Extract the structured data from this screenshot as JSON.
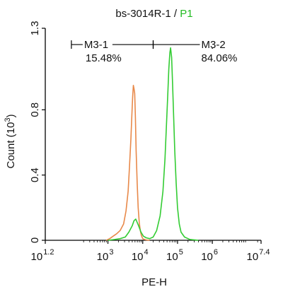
{
  "chart_data": {
    "type": "line",
    "title": {
      "sample": "bs-3014R-1",
      "separator": " / ",
      "gate": "P1"
    },
    "xlabel": "PE-H",
    "ylabel": "Count",
    "ylabel_unit_base": "(10",
    "ylabel_unit_exp": "3",
    "ylabel_unit_close": ")",
    "xscale": "log",
    "xlim": [
      1.2,
      7.4
    ],
    "ylim": [
      0,
      1.3
    ],
    "x_ticks": [
      {
        "base": "10",
        "exp": "1.2",
        "value": 1.2
      },
      {
        "base": "10",
        "exp": "3",
        "value": 3
      },
      {
        "base": "10",
        "exp": "4",
        "value": 4
      },
      {
        "base": "10",
        "exp": "5",
        "value": 5
      },
      {
        "base": "10",
        "exp": "6",
        "value": 6
      },
      {
        "base": "10",
        "exp": "7.4",
        "value": 7.4
      }
    ],
    "y_ticks": [
      {
        "label": "0",
        "value": 0
      },
      {
        "label": "0.4",
        "value": 0.4
      },
      {
        "label": "0.8",
        "value": 0.8
      },
      {
        "label": "1.3",
        "value": 1.3
      }
    ],
    "colors": {
      "title_gate": "#22bb22",
      "control": "#e8894a",
      "sample": "#33cc33",
      "axis": "#000000"
    },
    "series": [
      {
        "color": "#e8894a",
        "x": [
          2.95,
          3.05,
          3.15,
          3.25,
          3.35,
          3.45,
          3.52,
          3.58,
          3.62,
          3.66,
          3.69,
          3.71,
          3.73,
          3.75,
          3.77,
          3.79,
          3.81,
          3.84,
          3.87,
          3.9,
          3.93,
          3.96,
          4.0,
          4.05,
          4.1,
          4.2
        ],
        "y": [
          0,
          0.01,
          0.025,
          0.04,
          0.06,
          0.1,
          0.18,
          0.3,
          0.45,
          0.62,
          0.78,
          0.88,
          0.95,
          0.93,
          0.9,
          0.75,
          0.55,
          0.35,
          0.2,
          0.11,
          0.06,
          0.03,
          0.01,
          0.005,
          0.002,
          0
        ]
      },
      {
        "color": "#33cc33",
        "x": [
          3.0,
          3.2,
          3.35,
          3.5,
          3.6,
          3.7,
          3.75,
          3.8,
          3.88,
          3.95,
          4.02,
          4.1,
          4.2,
          4.3,
          4.4,
          4.5,
          4.58,
          4.64,
          4.68,
          4.72,
          4.75,
          4.78,
          4.8,
          4.83,
          4.86,
          4.89,
          4.92,
          4.96,
          5.0,
          5.05,
          5.1,
          5.2,
          5.35,
          5.6
        ],
        "y": [
          0,
          0.005,
          0.01,
          0.02,
          0.05,
          0.09,
          0.12,
          0.13,
          0.09,
          0.05,
          0.025,
          0.015,
          0.01,
          0.02,
          0.06,
          0.15,
          0.3,
          0.5,
          0.7,
          0.9,
          1.05,
          1.15,
          1.18,
          1.12,
          0.95,
          0.75,
          0.55,
          0.35,
          0.2,
          0.1,
          0.05,
          0.02,
          0.005,
          0
        ]
      }
    ],
    "gates": [
      {
        "name": "M3-1",
        "percent": "15.48%",
        "x_start": 1.95,
        "x_end": 4.3
      },
      {
        "name": "M3-2",
        "percent": "84.06%",
        "x_start": 4.3,
        "x_end": 6.0
      }
    ],
    "gate_y": 1.2
  }
}
